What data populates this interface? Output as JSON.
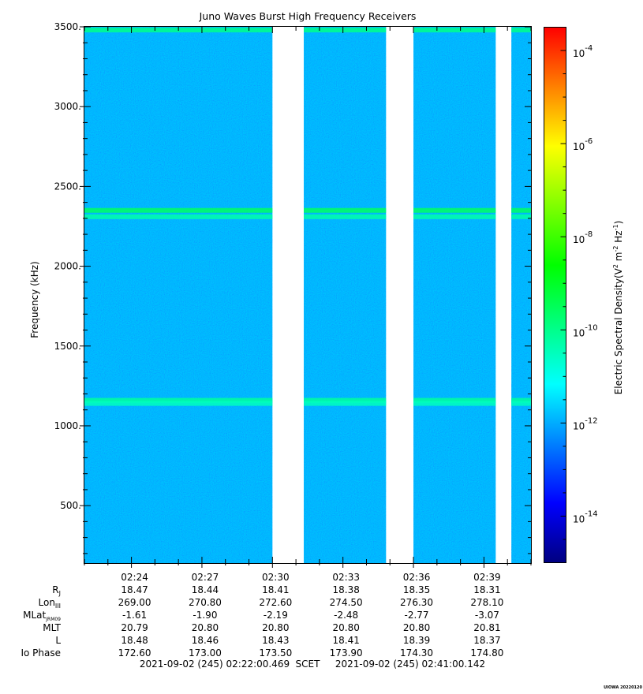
{
  "chart_data": {
    "type": "heatmap",
    "title": "Juno Waves Burst High Frequency Receivers",
    "ylabel": "Frequency (kHz)",
    "ylim": [
      140,
      3500
    ],
    "yticks": [
      {
        "value": 3500,
        "label": "3500."
      },
      {
        "value": 3000,
        "label": "3000."
      },
      {
        "value": 2500,
        "label": "2500."
      },
      {
        "value": 2000,
        "label": "2000."
      },
      {
        "value": 1500,
        "label": "1500."
      },
      {
        "value": 1000,
        "label": "1000."
      },
      {
        "value": 500,
        "label": "500."
      }
    ],
    "xlim": [
      "02:22:00",
      "02:41:00"
    ],
    "xticks": [
      "02:24",
      "02:27",
      "02:30",
      "02:33",
      "02:36",
      "02:39"
    ],
    "data_segments": [
      [
        "02:22:00",
        "02:30:00"
      ],
      [
        "02:31:20",
        "02:34:50"
      ],
      [
        "02:36:00",
        "02:39:30"
      ],
      [
        "02:40:10",
        "02:41:00"
      ]
    ],
    "background_level_exp": -11.8,
    "emission_bands": [
      {
        "freq_khz": 2350,
        "level_exp": -9.6
      },
      {
        "freq_khz": 2310,
        "level_exp": -10.3
      },
      {
        "freq_khz": 1160,
        "level_exp": -10.2
      },
      {
        "freq_khz": 1140,
        "level_exp": -10.5
      },
      {
        "freq_khz": 3480,
        "level_exp": -10.0
      }
    ],
    "colorbar": {
      "label": "Electric Spectral Density",
      "unit_base": "(V",
      "unit_sup1": "2",
      "unit_mid": " m",
      "unit_sup2": "-2",
      "unit_mid2": " Hz",
      "unit_sup3": "-1",
      "unit_end": ")",
      "range_exp": [
        -15,
        -3.5
      ],
      "colors": [
        "#000080",
        "#0000ff",
        "#0080ff",
        "#00ffff",
        "#00ff80",
        "#00ff00",
        "#80ff00",
        "#ffff00",
        "#ff8000",
        "#ff0000"
      ],
      "ticks": [
        {
          "exp": -4,
          "base": "10",
          "sup": "-4"
        },
        {
          "exp": -6,
          "base": "10",
          "sup": "-6"
        },
        {
          "exp": -8,
          "base": "10",
          "sup": "-8"
        },
        {
          "exp": -10,
          "base": "10",
          "sup": "-10"
        },
        {
          "exp": -12,
          "base": "10",
          "sup": "-12"
        },
        {
          "exp": -14,
          "base": "10",
          "sup": "-14"
        }
      ]
    },
    "ephemeris": [
      {
        "label": "R",
        "sub": "J",
        "values": [
          "18.47",
          "18.44",
          "18.41",
          "18.38",
          "18.35",
          "18.31"
        ]
      },
      {
        "label": "Lon",
        "sub": "III",
        "values": [
          "269.00",
          "270.80",
          "272.60",
          "274.50",
          "276.30",
          "278.10"
        ]
      },
      {
        "label": "MLat",
        "sub": "JRM09",
        "values": [
          "-1.61",
          "-1.90",
          "-2.19",
          "-2.48",
          "-2.77",
          "-3.07"
        ]
      },
      {
        "label": "MLT",
        "sub": "",
        "values": [
          "20.79",
          "20.80",
          "20.80",
          "20.80",
          "20.80",
          "20.81"
        ]
      },
      {
        "label": "L",
        "sub": "",
        "values": [
          "18.48",
          "18.46",
          "18.43",
          "18.41",
          "18.39",
          "18.37"
        ]
      },
      {
        "label": "Io Phase",
        "sub": "",
        "values": [
          "172.60",
          "173.00",
          "173.50",
          "173.90",
          "174.30",
          "174.80"
        ]
      }
    ],
    "time_range": {
      "start": "2021-09-02 (245) 02:22:00.469",
      "scet": "SCET",
      "end": "2021-09-02 (245) 02:41:00.142"
    },
    "footer_tag": "UIOWA 20220120"
  }
}
